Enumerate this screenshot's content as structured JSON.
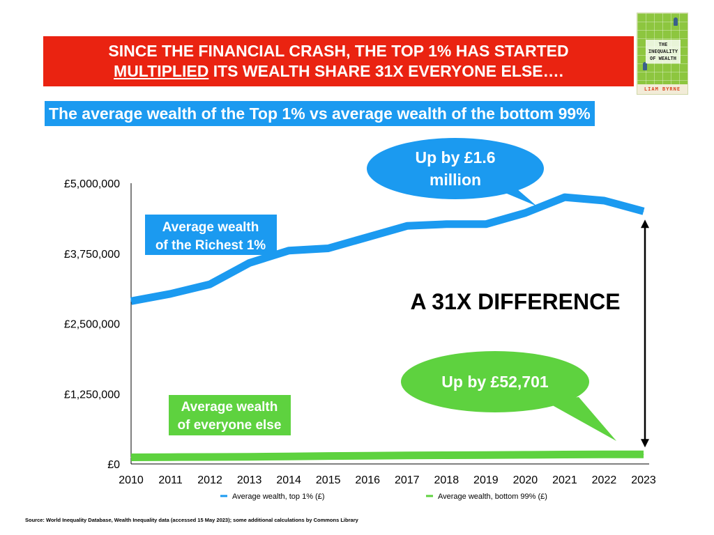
{
  "banner": {
    "line1": "SINCE THE FINANCIAL CRASH, THE TOP 1% HAS STARTED",
    "line2_underlined": "MULTIPLIED",
    "line2_rest": " ITS WEALTH SHARE 31X EVERYONE ELSE…."
  },
  "subtitle": "The average wealth of the Top 1% vs average wealth of the bottom 99%",
  "book": {
    "title": "THE INEQUALITY OF WEALTH",
    "author": "LIAM BYRNE"
  },
  "colors": {
    "top1": "#1b9af0",
    "bottom99": "#5ed23f",
    "banner": "#ea2311"
  },
  "chart_data": {
    "type": "line",
    "x": [
      "2010",
      "2011",
      "2012",
      "2013",
      "2014",
      "2015",
      "2016",
      "2017",
      "2018",
      "2019",
      "2020",
      "2021",
      "2022",
      "2023"
    ],
    "ylim": [
      0,
      5000000
    ],
    "yticks": [
      "£0",
      "£1,250,000",
      "£2,500,000",
      "£3,750,000",
      "£5,000,000"
    ],
    "series": [
      {
        "name": "Average wealth, top 1% (£)",
        "color": "#1b9af0",
        "values": [
          2900000,
          3030000,
          3200000,
          3580000,
          3800000,
          3840000,
          4040000,
          4240000,
          4270000,
          4270000,
          4470000,
          4750000,
          4690000,
          4500000
        ]
      },
      {
        "name": "Average wealth, bottom 99% (£)",
        "color": "#5ed23f",
        "values": [
          118000,
          121000,
          124000,
          128000,
          134000,
          141000,
          147000,
          152000,
          155000,
          157000,
          162000,
          168000,
          170000,
          170701
        ]
      }
    ],
    "annotations": {
      "top_bubble": [
        "Up by £1.6",
        "million"
      ],
      "bottom_bubble": "Up by £52,701",
      "top_label": [
        "Average wealth",
        "of the Richest 1%"
      ],
      "bottom_label": [
        "Average wealth",
        "of everyone else"
      ],
      "difference": "A 31X DIFFERENCE"
    }
  },
  "source": "Source: World Inequality Database, Wealth Inequality data (accessed 15 May 2023); some additional calculations by Commons Library"
}
